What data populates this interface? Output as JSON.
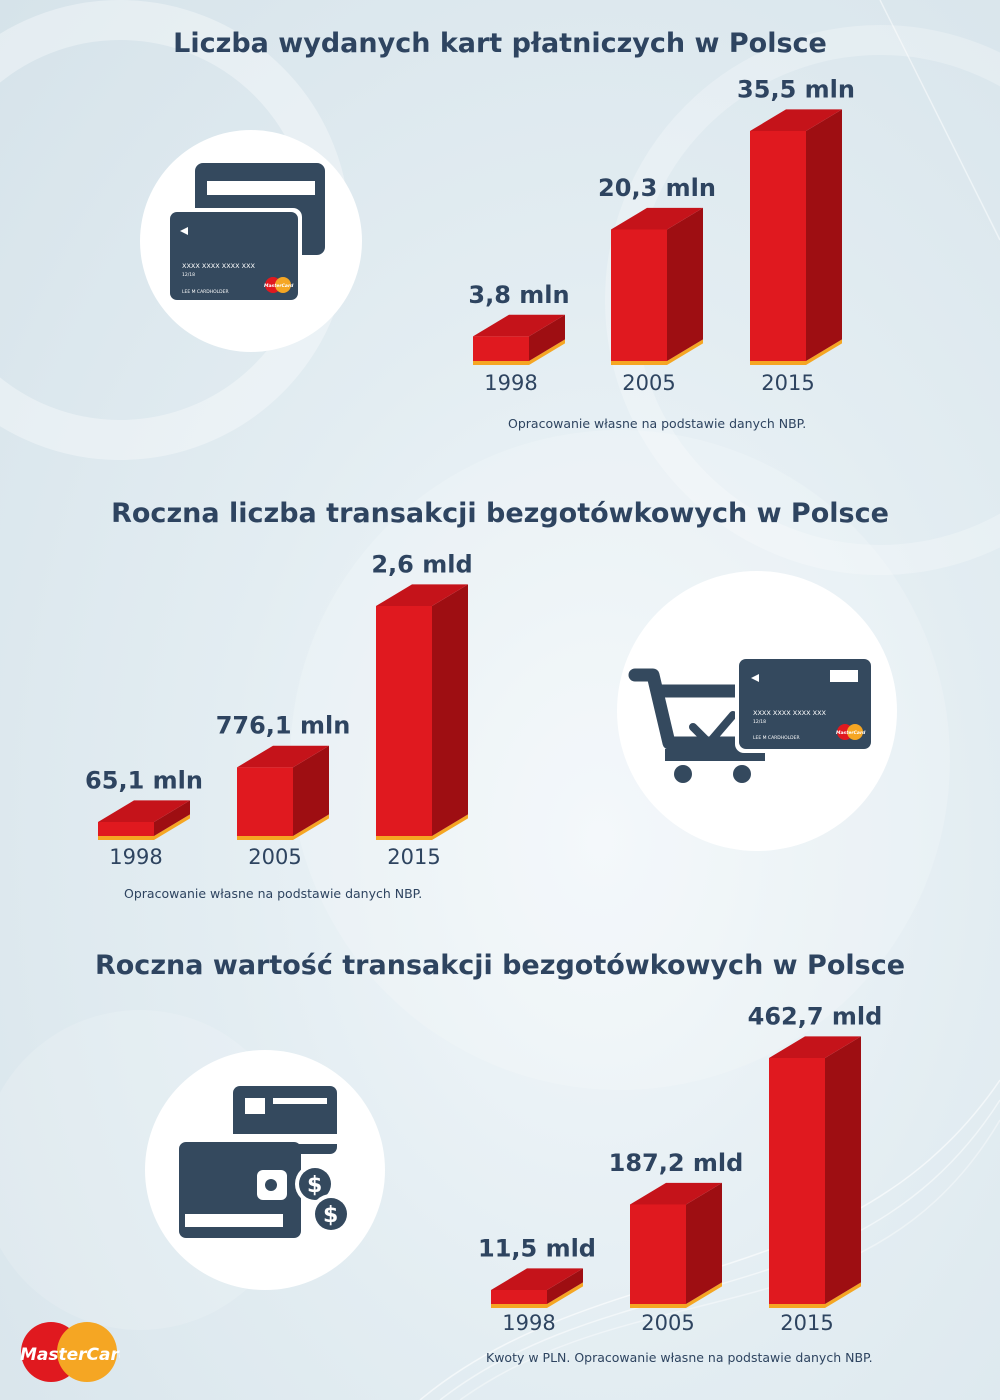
{
  "colors": {
    "title": "#2e4460",
    "bar_front": "#e0191f",
    "bar_side": "#9e0e12",
    "bar_top": "#c5131a",
    "bar_base": "#f5a623",
    "icon": "#34495e"
  },
  "sections": [
    {
      "title": "Liczba wydanych kart płatniczych w Polsce",
      "source": "Opracowanie własne na podstawie danych NBP.",
      "icon": "credit-cards-icon"
    },
    {
      "title": "Roczna liczba transakcji bezgotówkowych w Polsce",
      "source": "Opracowanie własne na podstawie danych NBP.",
      "icon": "shopping-cart-card-icon"
    },
    {
      "title": "Roczna wartość transakcji bezgotówkowych w Polsce",
      "source": "Kwoty w PLN. Opracowanie własne na podstawie danych NBP.",
      "icon": "wallet-coins-icon"
    }
  ],
  "card_text": {
    "number": "XXXX XXXX XXXX XXX",
    "expiry": "12/18",
    "holder": "LEE M CARDHOLDER",
    "brand": "MasterCard"
  },
  "logo_text": "MasterCard",
  "chart_data": [
    {
      "type": "bar",
      "title": "Liczba wydanych kart płatniczych w Polsce",
      "categories": [
        "1998",
        "2005",
        "2015"
      ],
      "values": [
        3.8,
        20.3,
        35.5
      ],
      "labels": [
        "3,8 mln",
        "20,3 mln",
        "35,5 mln"
      ],
      "unit": "mln"
    },
    {
      "type": "bar",
      "title": "Roczna liczba transakcji bezgotówkowych w Polsce",
      "categories": [
        "1998",
        "2005",
        "2015"
      ],
      "values": [
        0.0651,
        0.7761,
        2.6
      ],
      "labels": [
        "65,1 mln",
        "776,1 mln",
        "2,6 mld"
      ],
      "unit": "mld"
    },
    {
      "type": "bar",
      "title": "Roczna wartość transakcji bezgotówkowych w Polsce",
      "categories": [
        "1998",
        "2005",
        "2015"
      ],
      "values": [
        11.5,
        187.2,
        462.7
      ],
      "labels": [
        "11,5 mld",
        "187,2 mld",
        "462,7 mld"
      ],
      "unit": "mld"
    }
  ]
}
